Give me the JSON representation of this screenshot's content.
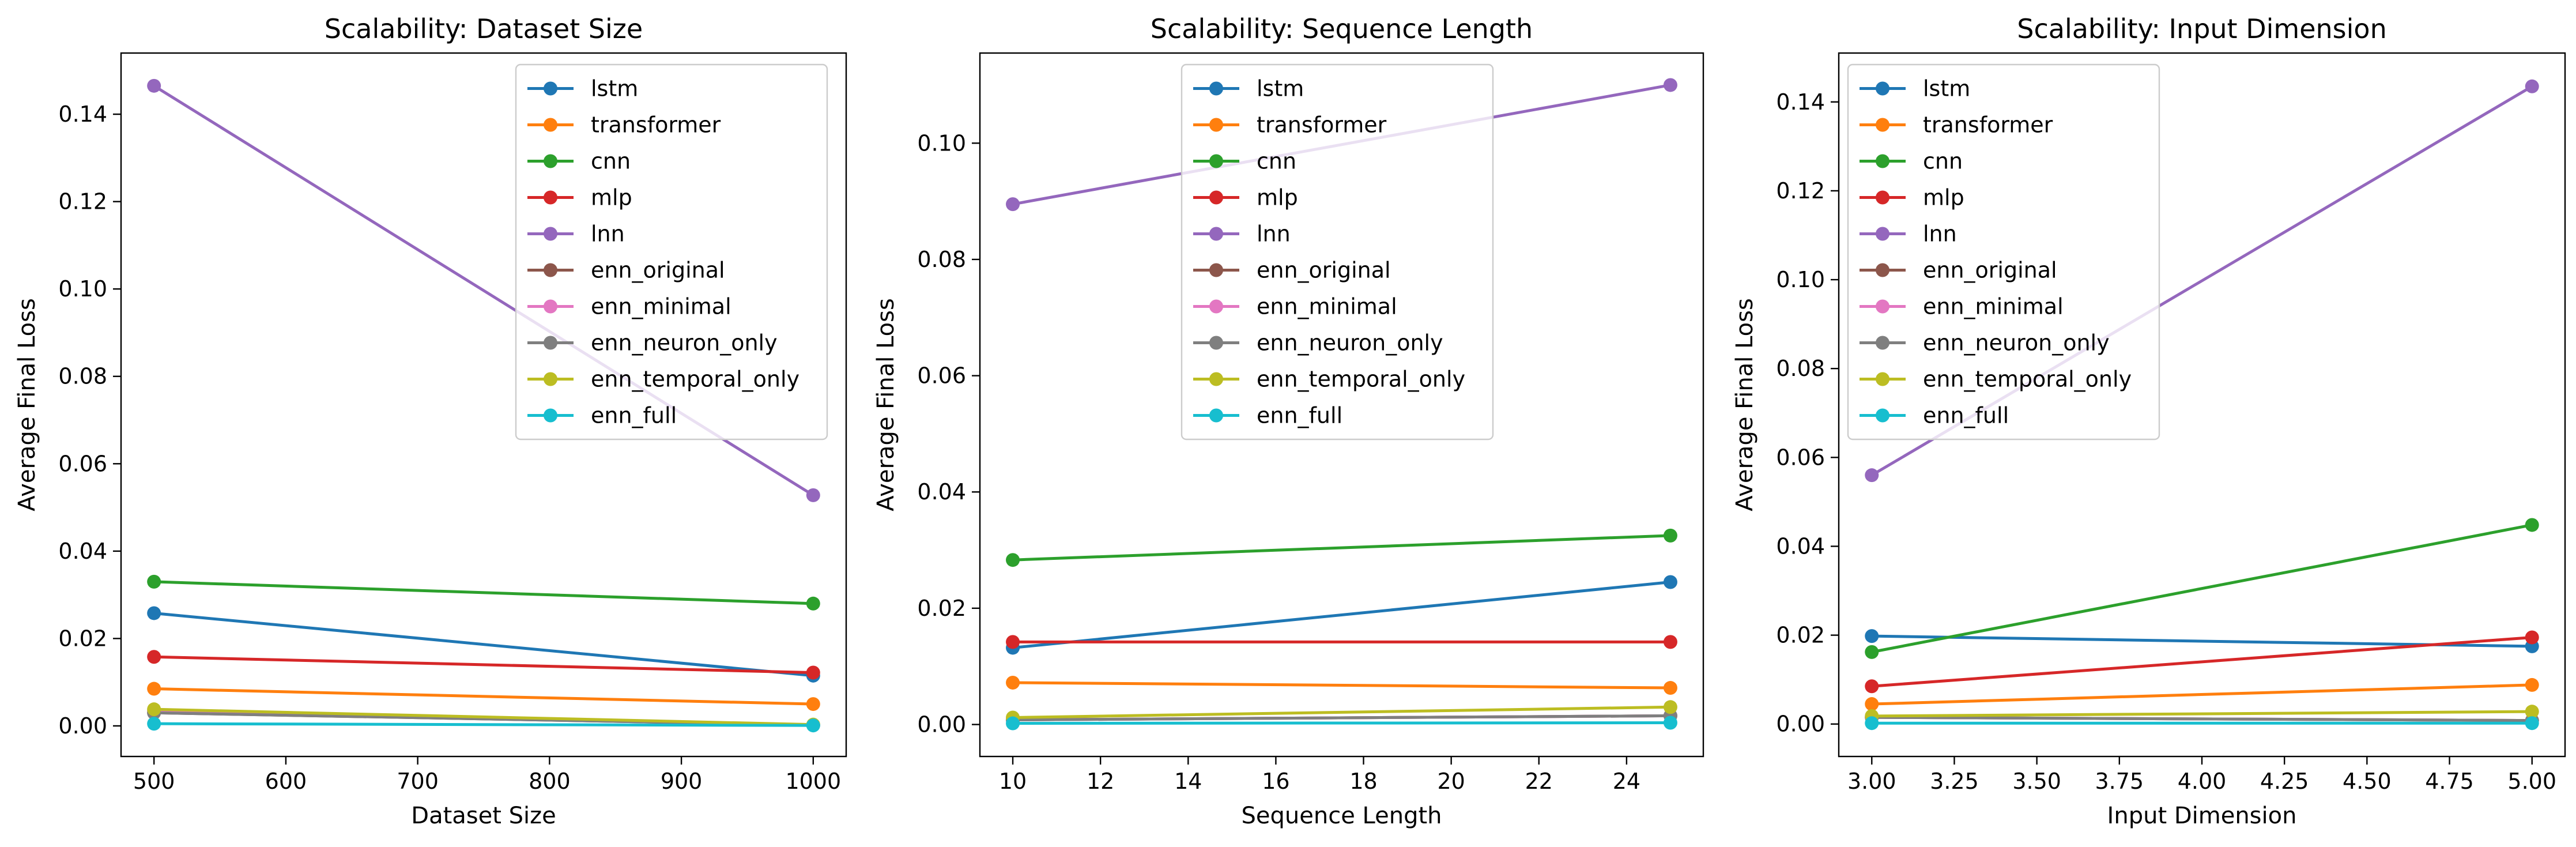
{
  "chart_data": [
    {
      "type": "line",
      "title": "Scalability: Dataset Size",
      "xlabel": "Dataset Size",
      "ylabel": "Average Final Loss",
      "x": [
        500,
        1000
      ],
      "xlim": [
        475,
        1025
      ],
      "ylim": [
        -0.007,
        0.154
      ],
      "xticks": [
        500,
        600,
        700,
        800,
        900,
        1000
      ],
      "xtick_labels": [
        "500",
        "600",
        "700",
        "800",
        "900",
        "1000"
      ],
      "yticks": [
        0,
        0.02,
        0.04,
        0.06,
        0.08,
        0.1,
        0.12,
        0.14
      ],
      "ytick_labels": [
        "0.00",
        "0.02",
        "0.04",
        "0.06",
        "0.08",
        "0.10",
        "0.12",
        "0.14"
      ],
      "legend_position": "upper-right",
      "grid": false,
      "series": [
        {
          "name": "lstm",
          "color": "#1f77b4",
          "values": [
            0.0258,
            0.0115
          ]
        },
        {
          "name": "transformer",
          "color": "#ff7f0e",
          "values": [
            0.0085,
            0.005
          ]
        },
        {
          "name": "cnn",
          "color": "#2ca02c",
          "values": [
            0.033,
            0.028
          ]
        },
        {
          "name": "mlp",
          "color": "#d62728",
          "values": [
            0.0158,
            0.0122
          ]
        },
        {
          "name": "lnn",
          "color": "#9467bd",
          "values": [
            0.1465,
            0.0528
          ]
        },
        {
          "name": "enn_original",
          "color": "#8c564b",
          "values": [
            0.003,
            0.0002
          ]
        },
        {
          "name": "enn_minimal",
          "color": "#e377c2",
          "values": [
            0.0035,
            0.0002
          ]
        },
        {
          "name": "enn_neuron_only",
          "color": "#7f7f7f",
          "values": [
            0.003,
            0.0002
          ]
        },
        {
          "name": "enn_temporal_only",
          "color": "#bcbd22",
          "values": [
            0.0038,
            0.0003
          ]
        },
        {
          "name": "enn_full",
          "color": "#17becf",
          "values": [
            0.0005,
            0.0001
          ]
        }
      ]
    },
    {
      "type": "line",
      "title": "Scalability: Sequence Length",
      "xlabel": "Sequence Length",
      "ylabel": "Average Final Loss",
      "x": [
        10,
        25
      ],
      "xlim": [
        9.25,
        25.75
      ],
      "ylim": [
        -0.0055,
        0.1155
      ],
      "xticks": [
        10,
        12,
        14,
        16,
        18,
        20,
        22,
        24
      ],
      "xtick_labels": [
        "10",
        "12",
        "14",
        "16",
        "18",
        "20",
        "22",
        "24"
      ],
      "yticks": [
        0,
        0.02,
        0.04,
        0.06,
        0.08,
        0.1
      ],
      "ytick_labels": [
        "0.00",
        "0.02",
        "0.04",
        "0.06",
        "0.08",
        "0.10"
      ],
      "legend_position": "upper-center",
      "grid": false,
      "series": [
        {
          "name": "lstm",
          "color": "#1f77b4",
          "values": [
            0.0132,
            0.0245
          ]
        },
        {
          "name": "transformer",
          "color": "#ff7f0e",
          "values": [
            0.0072,
            0.0063
          ]
        },
        {
          "name": "cnn",
          "color": "#2ca02c",
          "values": [
            0.0283,
            0.0325
          ]
        },
        {
          "name": "mlp",
          "color": "#d62728",
          "values": [
            0.0142,
            0.0142
          ]
        },
        {
          "name": "lnn",
          "color": "#9467bd",
          "values": [
            0.0895,
            0.11
          ]
        },
        {
          "name": "enn_original",
          "color": "#8c564b",
          "values": [
            0.0008,
            0.0015
          ]
        },
        {
          "name": "enn_minimal",
          "color": "#e377c2",
          "values": [
            0.0008,
            0.0015
          ]
        },
        {
          "name": "enn_neuron_only",
          "color": "#7f7f7f",
          "values": [
            0.0008,
            0.0015
          ]
        },
        {
          "name": "enn_temporal_only",
          "color": "#bcbd22",
          "values": [
            0.0012,
            0.003
          ]
        },
        {
          "name": "enn_full",
          "color": "#17becf",
          "values": [
            0.0002,
            0.0003
          ]
        }
      ]
    },
    {
      "type": "line",
      "title": "Scalability: Input Dimension",
      "xlabel": "Input Dimension",
      "ylabel": "Average Final Loss",
      "x": [
        3.0,
        5.0
      ],
      "xlim": [
        2.9,
        5.1
      ],
      "ylim": [
        -0.0073,
        0.151
      ],
      "xticks": [
        3.0,
        3.25,
        3.5,
        3.75,
        4.0,
        4.25,
        4.5,
        4.75,
        5.0
      ],
      "xtick_labels": [
        "3.00",
        "3.25",
        "3.50",
        "3.75",
        "4.00",
        "4.25",
        "4.50",
        "4.75",
        "5.00"
      ],
      "yticks": [
        0,
        0.02,
        0.04,
        0.06,
        0.08,
        0.1,
        0.12,
        0.14
      ],
      "ytick_labels": [
        "0.00",
        "0.02",
        "0.04",
        "0.06",
        "0.08",
        "0.10",
        "0.12",
        "0.14"
      ],
      "legend_position": "upper-left",
      "grid": false,
      "series": [
        {
          "name": "lstm",
          "color": "#1f77b4",
          "values": [
            0.0198,
            0.0175
          ]
        },
        {
          "name": "transformer",
          "color": "#ff7f0e",
          "values": [
            0.0045,
            0.0088
          ]
        },
        {
          "name": "cnn",
          "color": "#2ca02c",
          "values": [
            0.0162,
            0.0448
          ]
        },
        {
          "name": "mlp",
          "color": "#d62728",
          "values": [
            0.0085,
            0.0195
          ]
        },
        {
          "name": "lnn",
          "color": "#9467bd",
          "values": [
            0.056,
            0.1435
          ]
        },
        {
          "name": "enn_original",
          "color": "#8c564b",
          "values": [
            0.0015,
            0.0008
          ]
        },
        {
          "name": "enn_minimal",
          "color": "#e377c2",
          "values": [
            0.0015,
            0.0008
          ]
        },
        {
          "name": "enn_neuron_only",
          "color": "#7f7f7f",
          "values": [
            0.0015,
            0.0008
          ]
        },
        {
          "name": "enn_temporal_only",
          "color": "#bcbd22",
          "values": [
            0.0018,
            0.0028
          ]
        },
        {
          "name": "enn_full",
          "color": "#17becf",
          "values": [
            0.0002,
            0.0002
          ]
        }
      ]
    }
  ]
}
